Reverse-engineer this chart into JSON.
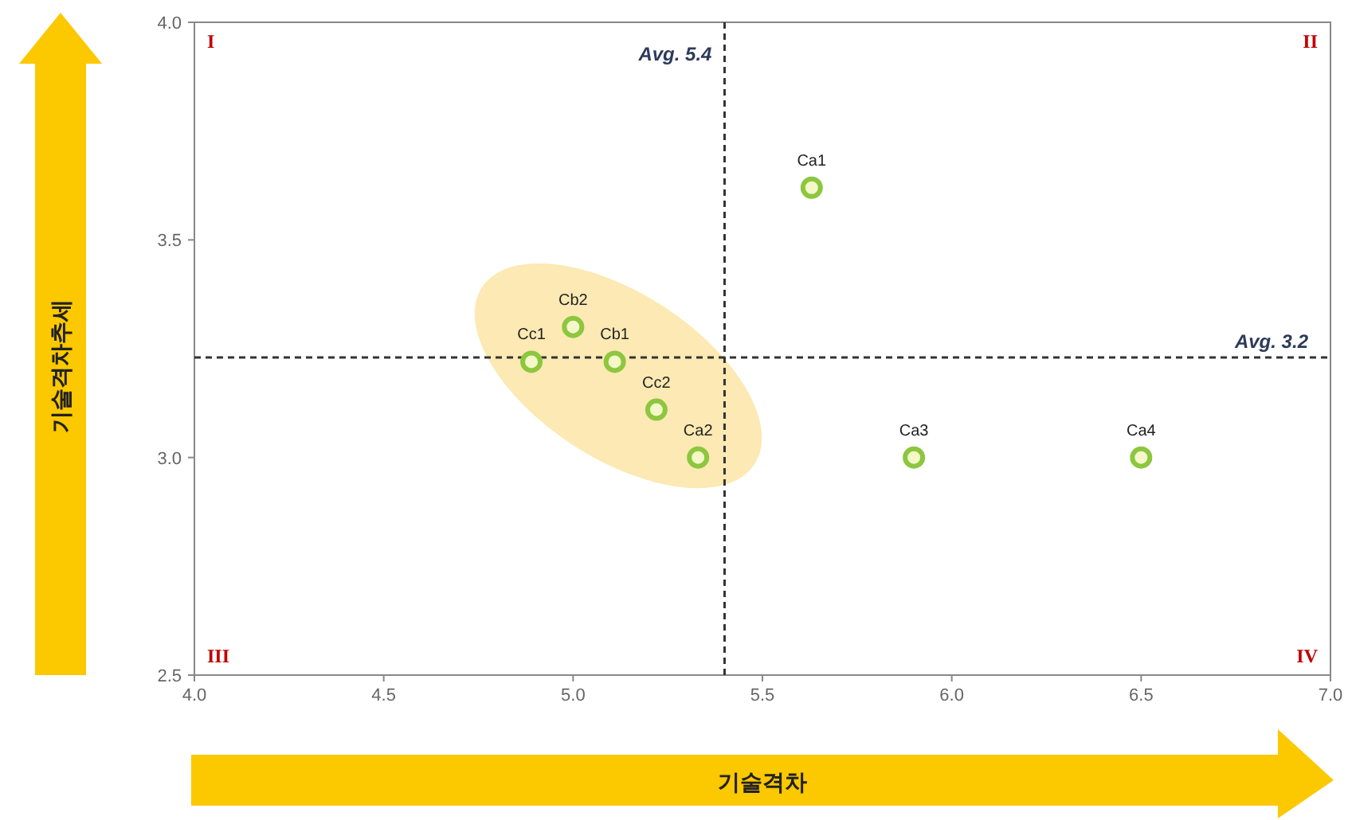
{
  "chart_data": {
    "type": "scatter",
    "xlabel": "기술격차",
    "ylabel": "기술격차추세",
    "xlim": [
      4.0,
      7.0
    ],
    "xticks": [
      {
        "value": 4.0,
        "label": "4.0"
      },
      {
        "value": 4.5,
        "label": "4.5"
      },
      {
        "value": 5.0,
        "label": "5.0"
      },
      {
        "value": 5.5,
        "label": "5.5"
      },
      {
        "value": 6.0,
        "label": "6.0"
      },
      {
        "value": 6.5,
        "label": "6.5"
      },
      {
        "value": 7.0,
        "label": "7.0"
      }
    ],
    "ylim": [
      2.5,
      4.0
    ],
    "yticks": [
      {
        "value": 2.5,
        "label": "2.5"
      },
      {
        "value": 3.0,
        "label": "3.0"
      },
      {
        "value": 3.5,
        "label": "3.5"
      },
      {
        "value": 4.0,
        "label": "4.0"
      }
    ],
    "marker": "circle",
    "series": [
      {
        "name": "Ca1",
        "color": "#8dc63f",
        "x": [
          5.63
        ],
        "values": [
          3.62
        ]
      },
      {
        "name": "Cb2",
        "color": "#8dc63f",
        "x": [
          5.0
        ],
        "values": [
          3.3
        ]
      },
      {
        "name": "Cc1",
        "color": "#8dc63f",
        "x": [
          4.89
        ],
        "values": [
          3.22
        ]
      },
      {
        "name": "Cb1",
        "color": "#8dc63f",
        "x": [
          5.11
        ],
        "values": [
          3.22
        ]
      },
      {
        "name": "Cc2",
        "color": "#8dc63f",
        "x": [
          5.22
        ],
        "values": [
          3.11
        ]
      },
      {
        "name": "Ca2",
        "color": "#8dc63f",
        "x": [
          5.33
        ],
        "values": [
          3.0
        ]
      },
      {
        "name": "Ca3",
        "color": "#8dc63f",
        "x": [
          5.9
        ],
        "values": [
          3.0
        ]
      },
      {
        "name": "Ca4",
        "color": "#8dc63f",
        "x": [
          6.5
        ],
        "values": [
          3.0
        ]
      }
    ],
    "ref_lines": [
      {
        "axis": "x",
        "value": 5.4,
        "label": "Avg. 5.4",
        "color": "#333333",
        "line_style": "dashed"
      },
      {
        "axis": "y",
        "value": 3.23,
        "label": "Avg. 3.2",
        "color": "#333333",
        "line_style": "dashed"
      }
    ],
    "annotations": [
      "I",
      "II",
      "III",
      "IV"
    ]
  }
}
